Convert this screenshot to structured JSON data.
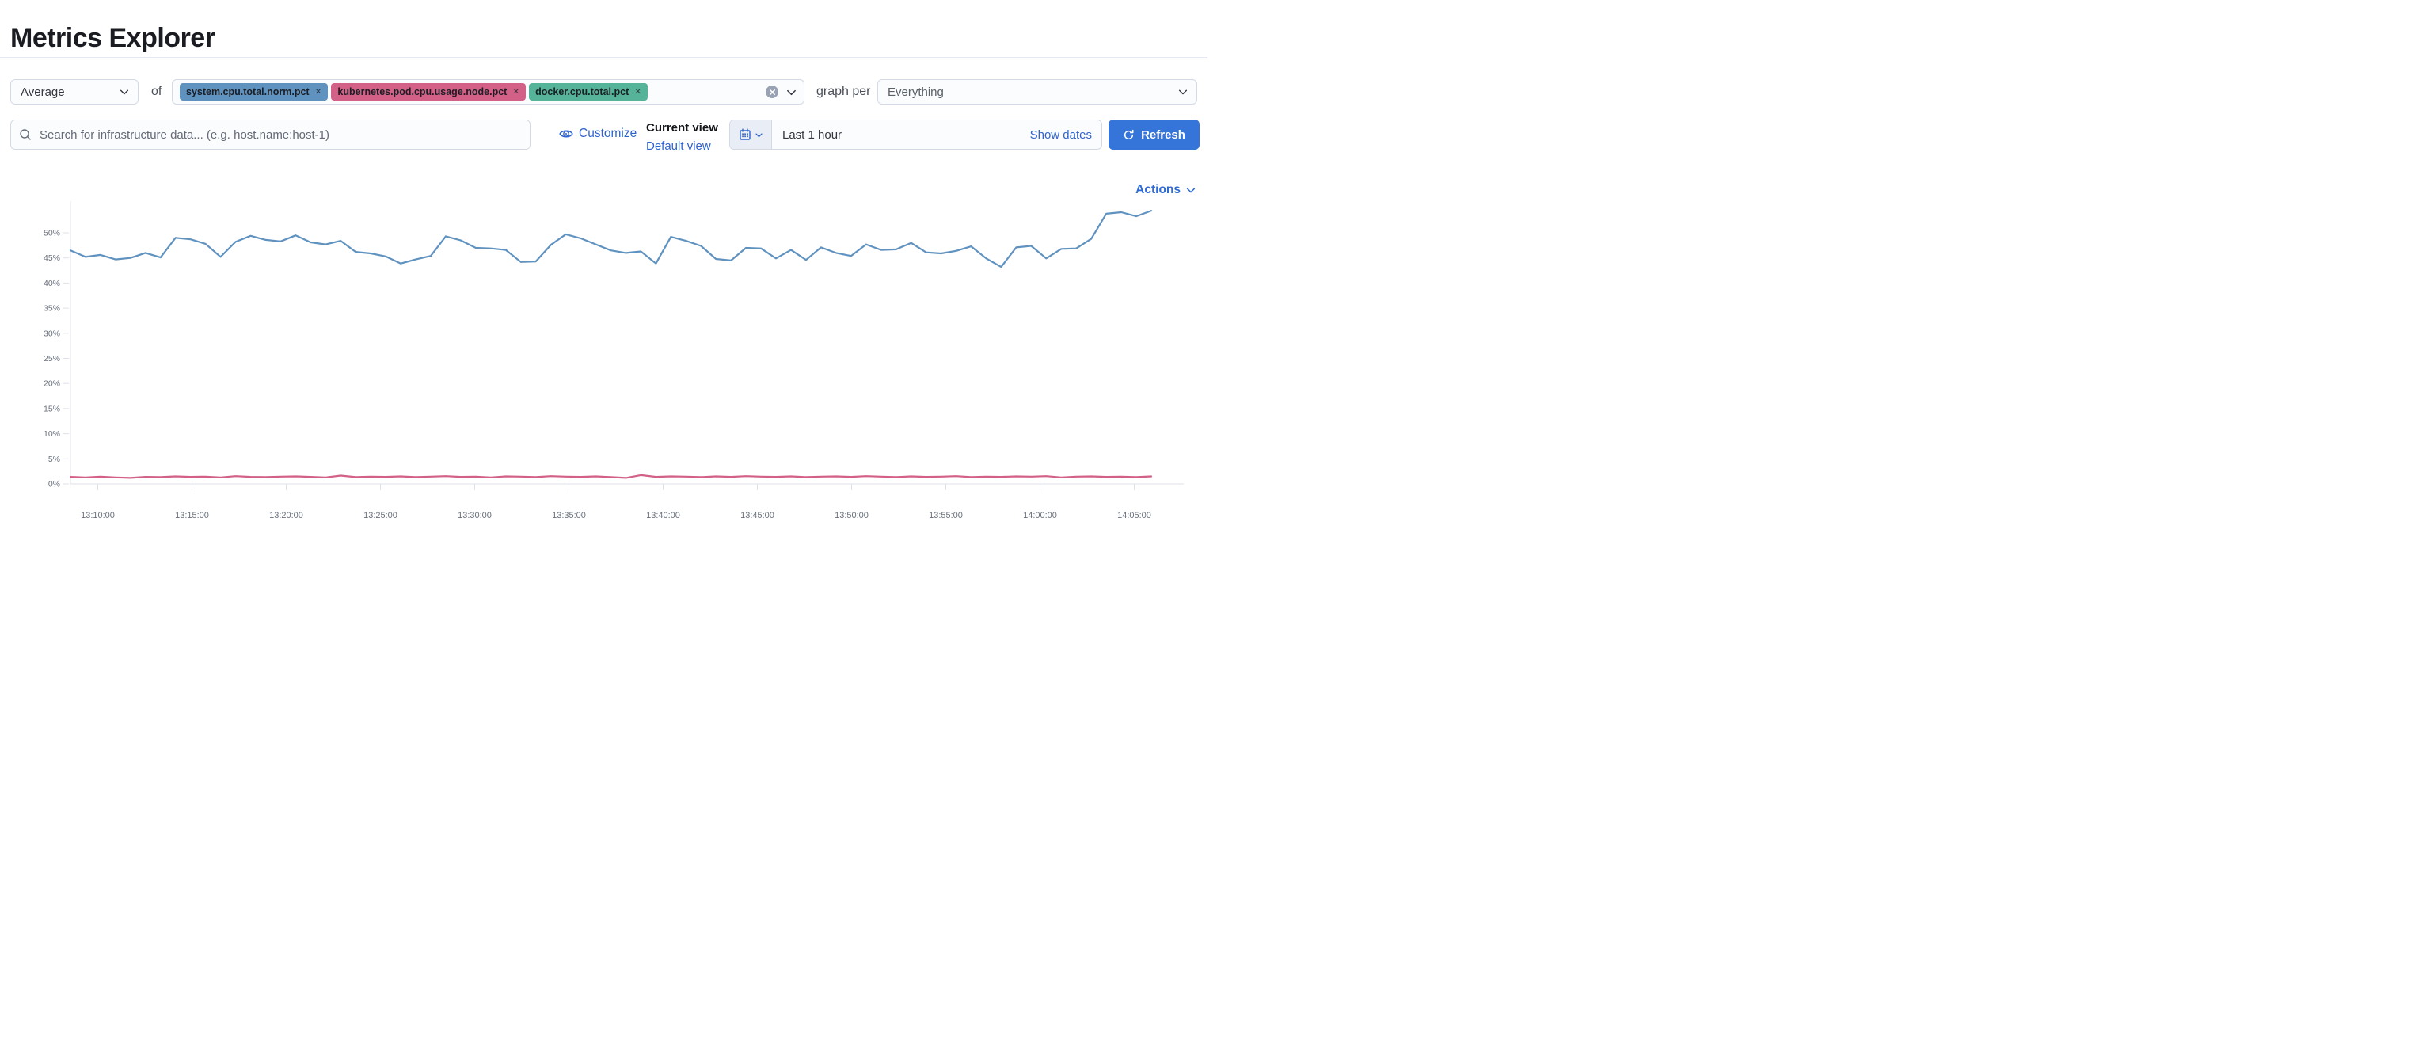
{
  "page": {
    "title": "Metrics Explorer"
  },
  "toolbar": {
    "aggregation": {
      "value": "Average"
    },
    "of_label": "of",
    "metrics": [
      {
        "label": "system.cpu.total.norm.pct",
        "color": "#6092c0",
        "remove_icon": "x"
      },
      {
        "label": "kubernetes.pod.cpu.usage.node.pct",
        "color": "#d36086",
        "remove_icon": "x"
      },
      {
        "label": "docker.cpu.total.pct",
        "color": "#54b399",
        "remove_icon": "x"
      }
    ],
    "graph_per_label": "graph per",
    "group_by": {
      "value": "Everything"
    }
  },
  "search": {
    "placeholder": "Search for infrastructure data... (e.g. host.name:host-1)"
  },
  "view_controls": {
    "customize_label": "Customize",
    "current_view_label": "Current view",
    "selected_view": "Default view"
  },
  "time_picker": {
    "range_label": "Last 1 hour",
    "show_dates_label": "Show dates",
    "refresh_label": "Refresh"
  },
  "actions_menu": {
    "label": "Actions"
  },
  "colors": {
    "primary_blue": "#3574d9",
    "link_blue": "#3064cd",
    "axis_text": "#69707d",
    "axis_line": "#dde2ea"
  },
  "chart_data": {
    "type": "line",
    "title": "",
    "xlabel": "",
    "ylabel": "",
    "grid": false,
    "legend": "off",
    "ylim": [
      0,
      55
    ],
    "y_ticks": [
      0,
      5,
      10,
      15,
      20,
      25,
      30,
      35,
      40,
      45,
      50
    ],
    "y_tick_labels": [
      "0%",
      "5%",
      "10%",
      "15%",
      "20%",
      "25%",
      "30%",
      "35%",
      "40%",
      "45%",
      "50%"
    ],
    "x_ticks": [
      "13:10:00",
      "13:15:00",
      "13:20:00",
      "13:25:00",
      "13:30:00",
      "13:35:00",
      "13:40:00",
      "13:45:00",
      "13:50:00",
      "13:55:00",
      "14:00:00",
      "14:05:00"
    ],
    "x_range": [
      "13:08:30",
      "14:06:00"
    ],
    "series": [
      {
        "name": "system.cpu.total.norm.pct",
        "color": "#6092c0",
        "unit": "%",
        "values": [
          46.5,
          45.2,
          45.6,
          44.7,
          45.0,
          46.0,
          45.1,
          49.0,
          48.7,
          47.8,
          45.2,
          48.2,
          49.4,
          48.6,
          48.3,
          49.5,
          48.1,
          47.7,
          48.4,
          46.2,
          45.9,
          45.3,
          43.9,
          44.7,
          45.4,
          49.3,
          48.5,
          47.0,
          46.9,
          46.6,
          44.2,
          44.3,
          47.6,
          49.7,
          48.9,
          47.7,
          46.5,
          46.0,
          46.3,
          43.9,
          49.2,
          48.4,
          47.4,
          44.8,
          44.5,
          47.0,
          46.9,
          44.9,
          46.6,
          44.6,
          47.1,
          46.0,
          45.4,
          47.7,
          46.6,
          46.7,
          48.0,
          46.1,
          45.9,
          46.4,
          47.3,
          44.9,
          43.2,
          47.1,
          47.4,
          44.9,
          46.8,
          46.9,
          48.8,
          53.8,
          54.1,
          53.3,
          54.4
        ]
      },
      {
        "name": "kubernetes.pod.cpu.usage.node.pct",
        "color": "#d36086",
        "unit": "%",
        "values": [
          1.4,
          1.3,
          1.45,
          1.3,
          1.2,
          1.4,
          1.35,
          1.5,
          1.4,
          1.45,
          1.3,
          1.55,
          1.4,
          1.35,
          1.45,
          1.5,
          1.4,
          1.3,
          1.65,
          1.35,
          1.45,
          1.4,
          1.5,
          1.35,
          1.45,
          1.55,
          1.4,
          1.45,
          1.3,
          1.5,
          1.45,
          1.35,
          1.55,
          1.45,
          1.4,
          1.5,
          1.35,
          1.2,
          1.75,
          1.4,
          1.5,
          1.45,
          1.35,
          1.5,
          1.4,
          1.55,
          1.45,
          1.4,
          1.5,
          1.35,
          1.45,
          1.5,
          1.4,
          1.55,
          1.45,
          1.35,
          1.5,
          1.4,
          1.45,
          1.55,
          1.35,
          1.45,
          1.4,
          1.5,
          1.45,
          1.55,
          1.3,
          1.45,
          1.5,
          1.4,
          1.45,
          1.35,
          1.5
        ]
      }
    ]
  }
}
